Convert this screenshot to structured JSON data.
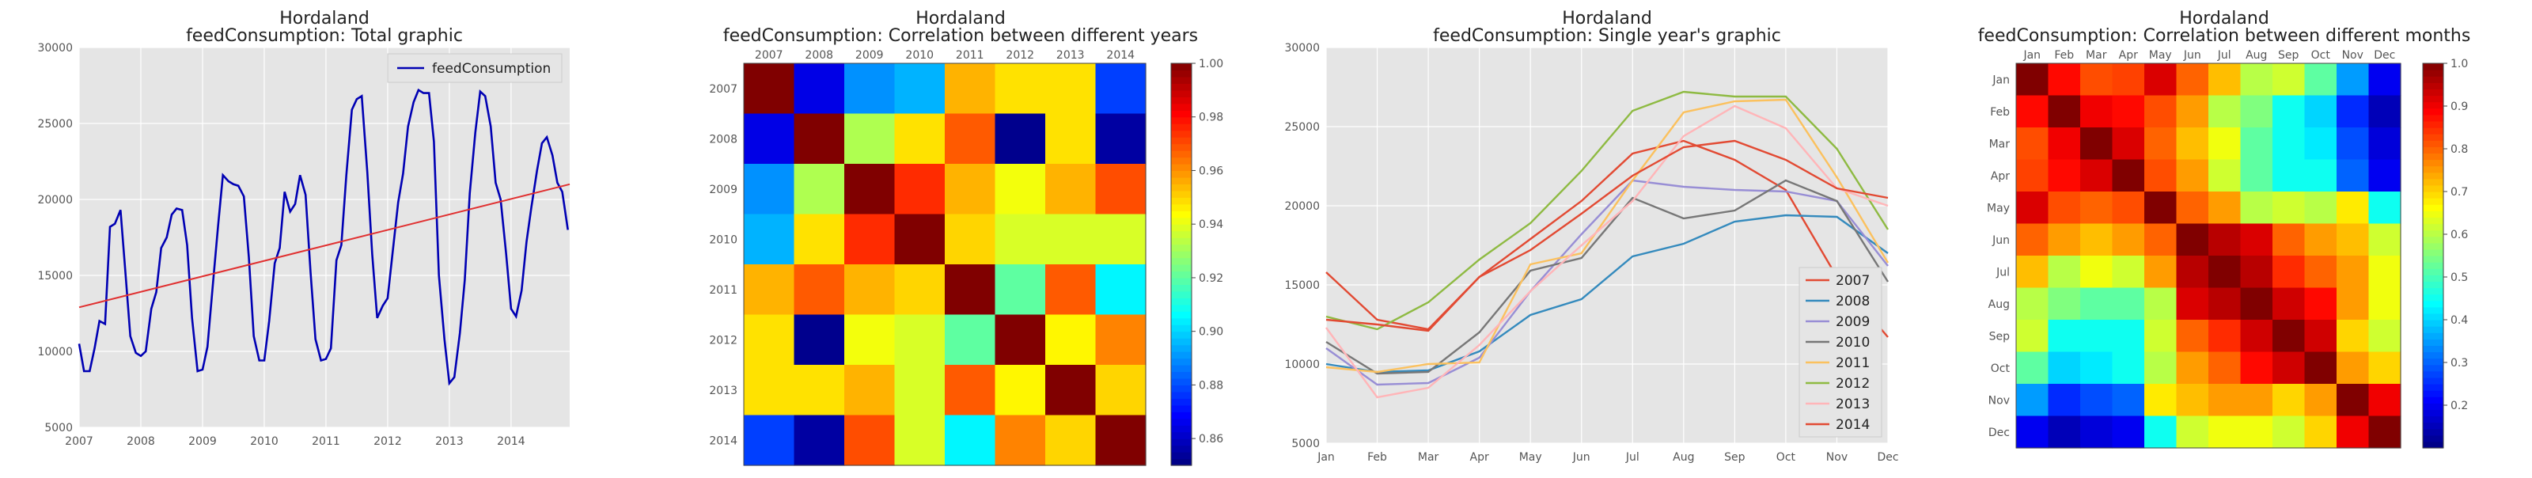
{
  "chart_data": [
    {
      "type": "line",
      "title": "Hordaland",
      "subtitle": "feedConsumption: Total graphic",
      "xlabel": "",
      "ylabel": "",
      "xlim": [
        2007.0,
        2014.95
      ],
      "ylim": [
        5000,
        30000
      ],
      "x_ticks": [
        "2007",
        "2008",
        "2009",
        "2010",
        "2011",
        "2012",
        "2013",
        "2014"
      ],
      "y_ticks": [
        5000,
        10000,
        15000,
        20000,
        25000,
        30000
      ],
      "legend": {
        "position": "top-right"
      },
      "grid": true,
      "colors": {
        "series": "#0000b3",
        "trend": "#e03030",
        "background": "#e5e5e5"
      },
      "series": [
        {
          "name": "feedConsumption",
          "x": [
            2007.0,
            2007.08,
            2007.17,
            2007.25,
            2007.33,
            2007.42,
            2007.5,
            2007.58,
            2007.67,
            2007.75,
            2007.83,
            2007.92,
            2008.0,
            2008.08,
            2008.17,
            2008.25,
            2008.33,
            2008.42,
            2008.5,
            2008.58,
            2008.67,
            2008.75,
            2008.83,
            2008.92,
            2009.0,
            2009.08,
            2009.17,
            2009.25,
            2009.33,
            2009.42,
            2009.5,
            2009.58,
            2009.67,
            2009.75,
            2009.83,
            2009.92,
            2010.0,
            2010.08,
            2010.17,
            2010.25,
            2010.33,
            2010.42,
            2010.5,
            2010.58,
            2010.67,
            2010.75,
            2010.83,
            2010.92,
            2011.0,
            2011.08,
            2011.17,
            2011.25,
            2011.33,
            2011.42,
            2011.5,
            2011.58,
            2011.67,
            2011.75,
            2011.83,
            2011.92,
            2012.0,
            2012.08,
            2012.17,
            2012.25,
            2012.33,
            2012.42,
            2012.5,
            2012.58,
            2012.67,
            2012.75,
            2012.83,
            2012.92,
            2013.0,
            2013.08,
            2013.17,
            2013.25,
            2013.33,
            2013.42,
            2013.5,
            2013.58,
            2013.67,
            2013.75,
            2013.83,
            2013.92,
            2014.0,
            2014.08,
            2014.17,
            2014.25,
            2014.33,
            2014.42,
            2014.5,
            2014.58,
            2014.67,
            2014.75,
            2014.83,
            2014.92
          ],
          "values": [
            10500,
            8700,
            8700,
            10200,
            12000,
            11800,
            18200,
            18400,
            19300,
            15200,
            11000,
            9900,
            9700,
            10000,
            12800,
            13900,
            16800,
            17500,
            19000,
            19400,
            19300,
            17000,
            12200,
            8700,
            8800,
            10300,
            14500,
            18200,
            21600,
            21200,
            21000,
            20900,
            20200,
            16200,
            11000,
            9400,
            9400,
            12000,
            15800,
            16800,
            20500,
            19200,
            19700,
            21600,
            20300,
            15200,
            10800,
            9400,
            9500,
            10200,
            16000,
            17000,
            21600,
            25900,
            26600,
            26800,
            21800,
            16400,
            12200,
            13000,
            13500,
            16500,
            19800,
            21700,
            24800,
            26400,
            27200,
            27000,
            27000,
            23800,
            15000,
            10800,
            7900,
            8300,
            11200,
            14700,
            20400,
            24400,
            27100,
            26800,
            24800,
            21100,
            20000,
            16400,
            12800,
            12300,
            14000,
            17200,
            19500,
            21900,
            23700,
            24100,
            22900,
            21100,
            20500,
            18000
          ]
        },
        {
          "name": "trend",
          "x": [
            2007.0,
            2014.95
          ],
          "values": [
            12900,
            21000
          ]
        }
      ]
    },
    {
      "type": "heatmap",
      "title": "Hordaland",
      "subtitle": "feedConsumption: Correlation between different years",
      "x_categories": [
        "2007",
        "2008",
        "2009",
        "2010",
        "2011",
        "2012",
        "2013",
        "2014"
      ],
      "y_categories": [
        "2007",
        "2008",
        "2009",
        "2010",
        "2011",
        "2012",
        "2013",
        "2014"
      ],
      "colorbar": {
        "min": 0.85,
        "max": 1.0,
        "ticks": [
          "0.86",
          "0.88",
          "0.90",
          "0.92",
          "0.94",
          "0.96",
          "0.98",
          "1.00"
        ],
        "colormap": "jet"
      },
      "values": [
        [
          1.0,
          0.865,
          0.89,
          0.895,
          0.955,
          0.948,
          0.948,
          0.878
        ],
        [
          0.865,
          1.0,
          0.932,
          0.948,
          0.968,
          0.852,
          0.948,
          0.855
        ],
        [
          0.89,
          0.932,
          1.0,
          0.975,
          0.955,
          0.942,
          0.955,
          0.97
        ],
        [
          0.895,
          0.948,
          0.975,
          1.0,
          0.95,
          0.938,
          0.938,
          0.938
        ],
        [
          0.955,
          0.968,
          0.955,
          0.95,
          1.0,
          0.92,
          0.968,
          0.905
        ],
        [
          0.948,
          0.852,
          0.942,
          0.938,
          0.92,
          1.0,
          0.945,
          0.962
        ],
        [
          0.948,
          0.948,
          0.955,
          0.938,
          0.968,
          0.945,
          1.0,
          0.95
        ],
        [
          0.878,
          0.855,
          0.97,
          0.938,
          0.905,
          0.962,
          0.95,
          1.0
        ]
      ]
    },
    {
      "type": "line",
      "title": "Hordaland",
      "subtitle": "feedConsumption: Single year's graphic",
      "categories": [
        "Jan",
        "Feb",
        "Mar",
        "Apr",
        "May",
        "Jun",
        "Jul",
        "Aug",
        "Sep",
        "Oct",
        "Nov",
        "Dec"
      ],
      "ylim": [
        5000,
        30000
      ],
      "y_ticks": [
        5000,
        10000,
        15000,
        20000,
        25000,
        30000
      ],
      "legend": {
        "position": "bottom-right"
      },
      "grid": true,
      "series": [
        {
          "name": "2007",
          "color": "#e24a33",
          "values": [
            15800,
            12800,
            12200,
            15500,
            17900,
            20300,
            23300,
            24100,
            22900,
            21000,
            15500,
            11700
          ]
        },
        {
          "name": "2008",
          "color": "#348abd",
          "values": [
            10000,
            9500,
            9600,
            10800,
            13100,
            14100,
            16800,
            17600,
            19000,
            19400,
            19300,
            17000
          ]
        },
        {
          "name": "2009",
          "color": "#988ed5",
          "values": [
            11000,
            8700,
            8800,
            10400,
            14600,
            18200,
            21600,
            21200,
            21000,
            20900,
            20300,
            16200
          ]
        },
        {
          "name": "2010",
          "color": "#777777",
          "values": [
            11400,
            9400,
            9500,
            12000,
            15900,
            16700,
            20500,
            19200,
            19700,
            21600,
            20300,
            15200
          ]
        },
        {
          "name": "2011",
          "color": "#fbc15e",
          "values": [
            9800,
            9500,
            10000,
            10100,
            16300,
            17000,
            21600,
            25900,
            26600,
            26700,
            21800,
            16400
          ]
        },
        {
          "name": "2012",
          "color": "#8eba42",
          "values": [
            13000,
            12200,
            13900,
            16600,
            18900,
            22200,
            26000,
            27200,
            26900,
            26900,
            23600,
            18500
          ]
        },
        {
          "name": "2013",
          "color": "#ffb5b8",
          "values": [
            12300,
            7900,
            8500,
            11200,
            14600,
            17500,
            20300,
            24400,
            26300,
            24900,
            21100,
            20000
          ]
        },
        {
          "name": "2014",
          "color": "#e24a33",
          "values": [
            12800,
            12500,
            12100,
            15500,
            17200,
            19500,
            21900,
            23700,
            24100,
            22900,
            21100,
            20500
          ]
        }
      ]
    },
    {
      "type": "heatmap",
      "title": "Hordaland",
      "subtitle": "feedConsumption: Correlation between different months",
      "x_categories": [
        "Jan",
        "Feb",
        "Mar",
        "Apr",
        "May",
        "Jun",
        "Jul",
        "Aug",
        "Sep",
        "Oct",
        "Nov",
        "Dec"
      ],
      "y_categories": [
        "Jan",
        "Feb",
        "Mar",
        "Apr",
        "May",
        "Jun",
        "Jul",
        "Aug",
        "Sep",
        "Oct",
        "Nov",
        "Dec"
      ],
      "colorbar": {
        "min": 0.1,
        "max": 1.0,
        "ticks": [
          "0.2",
          "0.3",
          "0.4",
          "0.5",
          "0.6",
          "0.7",
          "0.8",
          "0.9",
          "1.0"
        ],
        "colormap": "jet"
      },
      "values": [
        [
          1.0,
          0.88,
          0.82,
          0.83,
          0.92,
          0.8,
          0.72,
          0.6,
          0.62,
          0.52,
          0.35,
          0.2
        ],
        [
          0.88,
          1.0,
          0.9,
          0.88,
          0.82,
          0.75,
          0.6,
          0.55,
          0.45,
          0.4,
          0.25,
          0.15
        ],
        [
          0.82,
          0.9,
          1.0,
          0.92,
          0.8,
          0.72,
          0.65,
          0.52,
          0.45,
          0.42,
          0.28,
          0.18
        ],
        [
          0.83,
          0.88,
          0.92,
          1.0,
          0.82,
          0.75,
          0.62,
          0.52,
          0.45,
          0.45,
          0.3,
          0.2
        ],
        [
          0.92,
          0.82,
          0.8,
          0.82,
          1.0,
          0.8,
          0.75,
          0.6,
          0.62,
          0.6,
          0.68,
          0.45
        ],
        [
          0.8,
          0.75,
          0.72,
          0.75,
          0.8,
          1.0,
          0.95,
          0.92,
          0.8,
          0.75,
          0.72,
          0.62
        ],
        [
          0.72,
          0.6,
          0.65,
          0.62,
          0.75,
          0.95,
          1.0,
          0.95,
          0.85,
          0.8,
          0.75,
          0.65
        ],
        [
          0.6,
          0.55,
          0.52,
          0.52,
          0.6,
          0.92,
          0.95,
          1.0,
          0.93,
          0.88,
          0.75,
          0.65
        ],
        [
          0.62,
          0.45,
          0.45,
          0.45,
          0.62,
          0.8,
          0.85,
          0.93,
          1.0,
          0.93,
          0.7,
          0.62
        ],
        [
          0.52,
          0.4,
          0.42,
          0.45,
          0.6,
          0.75,
          0.8,
          0.88,
          0.93,
          1.0,
          0.75,
          0.7
        ],
        [
          0.35,
          0.25,
          0.28,
          0.3,
          0.68,
          0.72,
          0.75,
          0.75,
          0.7,
          0.75,
          1.0,
          0.9
        ],
        [
          0.2,
          0.15,
          0.18,
          0.2,
          0.45,
          0.62,
          0.65,
          0.65,
          0.62,
          0.7,
          0.9,
          1.0
        ]
      ]
    }
  ]
}
